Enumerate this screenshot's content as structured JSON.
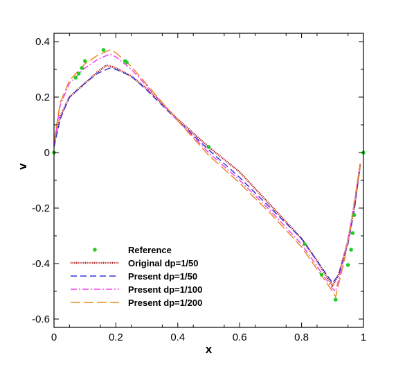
{
  "chart_data": {
    "type": "line",
    "xlabel": "x",
    "ylabel": "v",
    "xlim": [
      0,
      1
    ],
    "ylim": [
      -0.63,
      0.43
    ],
    "xticks": [
      "0",
      "0.2",
      "0.4",
      "0.6",
      "0.8",
      "1"
    ],
    "yticks": [
      "0.4",
      "0.2",
      "0",
      "-0.2",
      "-0.4",
      "-0.6"
    ],
    "grid": false,
    "legend_position": "bottom-left",
    "series": [
      {
        "name": "Reference",
        "style": "scatter",
        "color": "#22cc22",
        "x": [
          0.0,
          0.07,
          0.08,
          0.09,
          0.1,
          0.16,
          0.23,
          0.235,
          0.5,
          0.81,
          0.865,
          0.91,
          0.95,
          0.96,
          0.965,
          0.97,
          1.0
        ],
        "y": [
          0.0,
          0.27,
          0.285,
          0.305,
          0.33,
          0.37,
          0.33,
          0.325,
          0.02,
          -0.33,
          -0.44,
          -0.53,
          -0.405,
          -0.35,
          -0.29,
          -0.225,
          0.0
        ]
      },
      {
        "name": "Original dp=1/50",
        "style": "dotted",
        "color": "#b01818",
        "x": [
          0.0,
          0.02,
          0.05,
          0.1,
          0.14,
          0.17,
          0.2,
          0.25,
          0.3,
          0.4,
          0.5,
          0.6,
          0.7,
          0.8,
          0.85,
          0.9,
          0.92,
          0.95,
          0.97,
          0.99
        ],
        "y": [
          0.03,
          0.13,
          0.2,
          0.25,
          0.29,
          0.315,
          0.305,
          0.275,
          0.23,
          0.12,
          0.02,
          -0.07,
          -0.19,
          -0.31,
          -0.39,
          -0.48,
          -0.44,
          -0.32,
          -0.2,
          -0.04
        ]
      },
      {
        "name": "Present dp=1/50",
        "style": "dashed",
        "color": "#3333dd",
        "x": [
          0.0,
          0.02,
          0.05,
          0.1,
          0.14,
          0.18,
          0.2,
          0.25,
          0.3,
          0.4,
          0.5,
          0.6,
          0.7,
          0.8,
          0.85,
          0.9,
          0.92,
          0.95,
          0.97,
          0.99
        ],
        "y": [
          0.02,
          0.12,
          0.2,
          0.25,
          0.285,
          0.305,
          0.3,
          0.275,
          0.225,
          0.115,
          0.01,
          -0.09,
          -0.2,
          -0.31,
          -0.39,
          -0.47,
          -0.44,
          -0.33,
          -0.21,
          -0.04
        ]
      },
      {
        "name": "Present dp=1/100",
        "style": "dashdot",
        "color": "#ee44ee",
        "x": [
          0.0,
          0.02,
          0.05,
          0.1,
          0.14,
          0.18,
          0.2,
          0.25,
          0.3,
          0.4,
          0.5,
          0.6,
          0.7,
          0.8,
          0.85,
          0.9,
          0.91,
          0.94,
          0.96,
          0.99
        ],
        "y": [
          0.03,
          0.17,
          0.25,
          0.305,
          0.335,
          0.355,
          0.345,
          0.3,
          0.24,
          0.115,
          0.0,
          -0.1,
          -0.21,
          -0.33,
          -0.41,
          -0.49,
          -0.5,
          -0.37,
          -0.25,
          -0.04
        ]
      },
      {
        "name": "Present dp=1/200",
        "style": "longdash",
        "color": "#ee8822",
        "x": [
          0.0,
          0.02,
          0.05,
          0.1,
          0.14,
          0.18,
          0.2,
          0.25,
          0.3,
          0.4,
          0.5,
          0.6,
          0.7,
          0.8,
          0.85,
          0.9,
          0.91,
          0.94,
          0.96,
          0.99
        ],
        "y": [
          0.04,
          0.18,
          0.26,
          0.32,
          0.35,
          0.37,
          0.36,
          0.31,
          0.245,
          0.115,
          -0.01,
          -0.11,
          -0.22,
          -0.34,
          -0.42,
          -0.5,
          -0.52,
          -0.38,
          -0.26,
          -0.04
        ]
      }
    ]
  }
}
